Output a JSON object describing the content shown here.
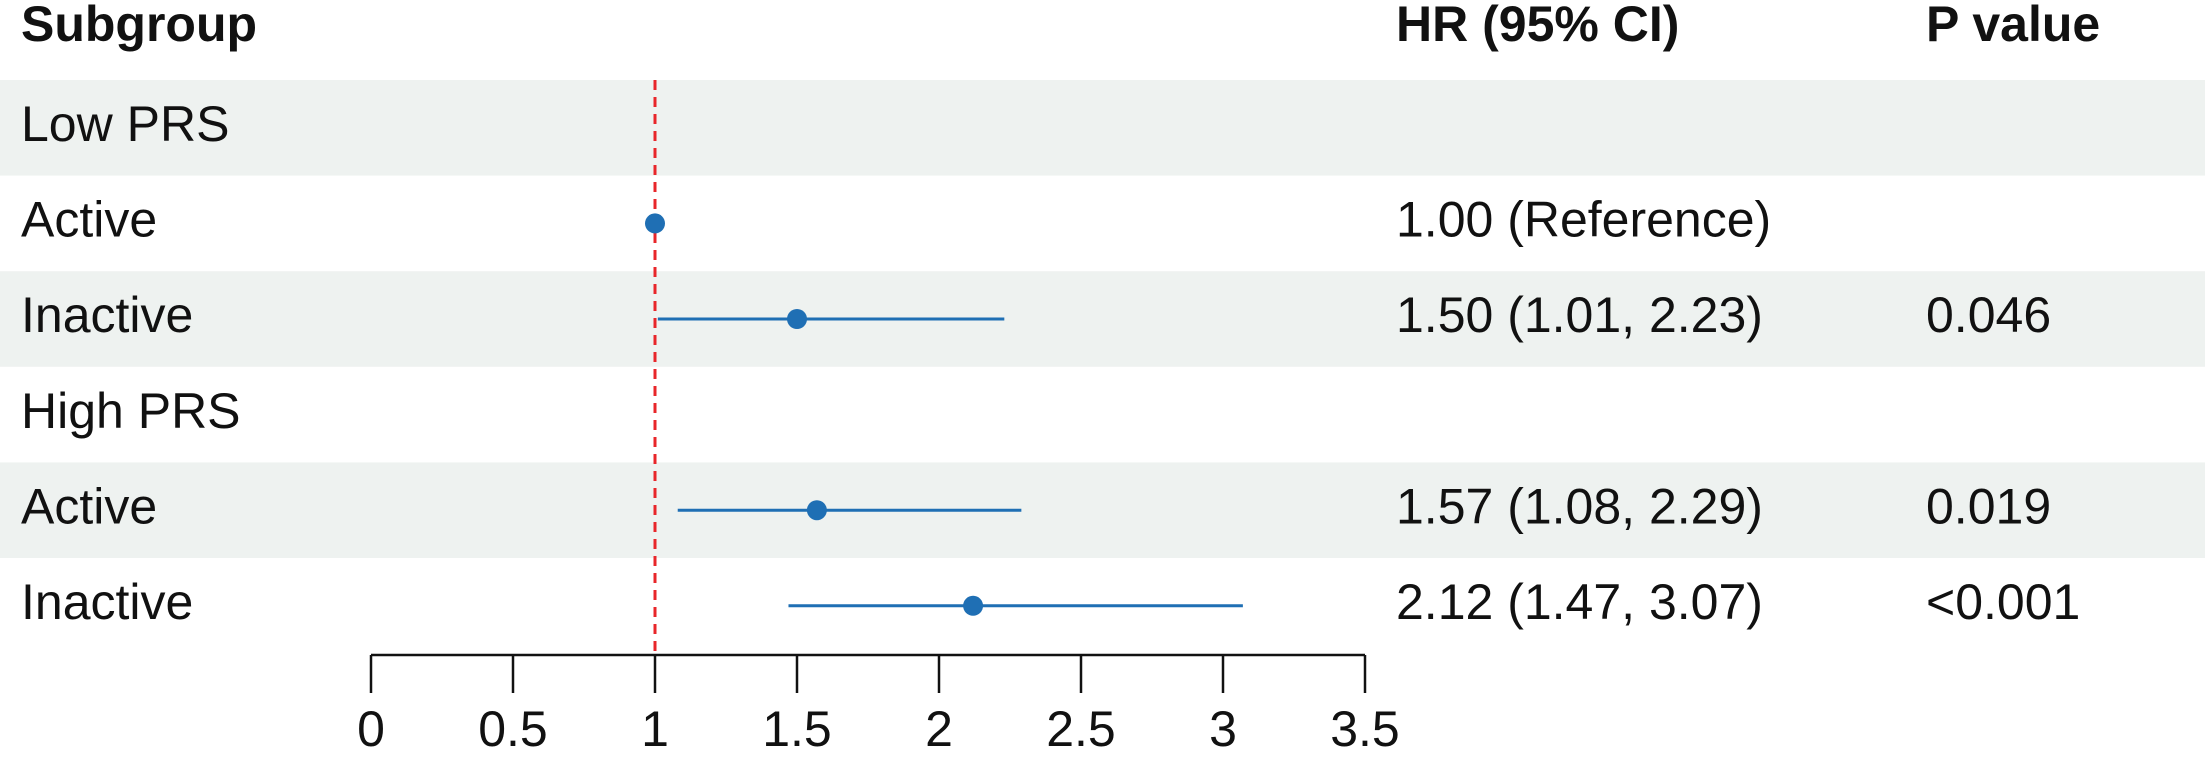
{
  "chart_data": {
    "type": "forest",
    "headers": {
      "subgroup": "Subgroup",
      "hr": "HR (95% CI)",
      "p": "P value"
    },
    "rows": [
      {
        "label": "Low PRS"
      },
      {
        "label": "Active",
        "hr": 1.0,
        "hr_label": "1.00 (Reference)"
      },
      {
        "label": "Inactive",
        "hr": 1.5,
        "lower": 1.01,
        "upper": 2.23,
        "hr_label": "1.50 (1.01, 2.23)",
        "p_label": "0.046"
      },
      {
        "label": "High PRS"
      },
      {
        "label": "Active",
        "hr": 1.57,
        "lower": 1.08,
        "upper": 2.29,
        "hr_label": "1.57 (1.08, 2.29)",
        "p_label": "0.019"
      },
      {
        "label": "Inactive",
        "hr": 2.12,
        "lower": 1.47,
        "upper": 3.07,
        "hr_label": "2.12 (1.47, 3.07)",
        "p_label": "<0.001"
      }
    ],
    "color": "#1f6fb4",
    "reference_line": 1,
    "reference_color": "#e8262a",
    "xlim": [
      0,
      3.5
    ],
    "xticks": [
      0,
      0.5,
      1,
      1.5,
      2,
      2.5,
      3,
      3.5
    ]
  }
}
